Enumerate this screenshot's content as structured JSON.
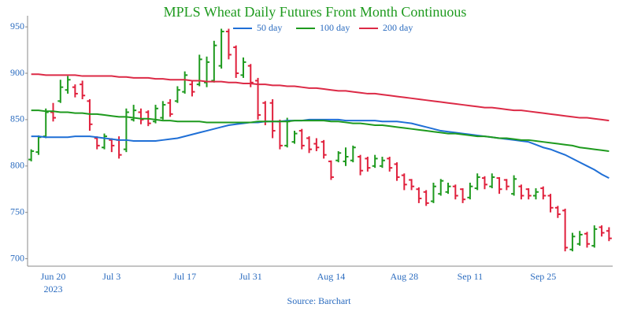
{
  "chart_data": {
    "type": "ohlc",
    "title": "MPLS Wheat Daily Futures Front Month Continuous",
    "source": "Source: Barchart",
    "year_label": "2023",
    "categories": [
      null,
      null,
      null,
      "Jun 20",
      null,
      null,
      null,
      null,
      null,
      null,
      null,
      "Jul 3",
      null,
      null,
      null,
      null,
      null,
      null,
      null,
      null,
      null,
      "Jul 17",
      null,
      null,
      null,
      null,
      null,
      null,
      null,
      null,
      "Jul 31",
      null,
      null,
      null,
      null,
      null,
      null,
      null,
      null,
      null,
      null,
      "Aug 14",
      null,
      null,
      null,
      null,
      null,
      null,
      null,
      null,
      null,
      "Aug 28",
      null,
      null,
      null,
      null,
      null,
      null,
      null,
      null,
      "Sep 11",
      null,
      null,
      null,
      null,
      null,
      null,
      null,
      null,
      null,
      "Sep 25",
      null,
      null,
      null,
      null,
      null,
      null,
      null,
      null,
      null
    ],
    "open": [
      807,
      815,
      832,
      858,
      870,
      882,
      885,
      888,
      870,
      830,
      820,
      828,
      828,
      818,
      850,
      858,
      858,
      848,
      852,
      868,
      870,
      880,
      888,
      888,
      890,
      892,
      908,
      945,
      928,
      898,
      908,
      892,
      868,
      868,
      848,
      822,
      826,
      838,
      830,
      824,
      826,
      805,
      806,
      805,
      806,
      810,
      808,
      800,
      800,
      808,
      802,
      790,
      785,
      775,
      772,
      762,
      770,
      772,
      778,
      775,
      766,
      776,
      787,
      778,
      787,
      785,
      770,
      778,
      775,
      768,
      776,
      768,
      755,
      752,
      710,
      716,
      727,
      714,
      734,
      730
    ],
    "high": [
      818,
      833,
      862,
      868,
      893,
      897,
      888,
      892,
      872,
      832,
      835,
      830,
      832,
      862,
      866,
      862,
      860,
      866,
      870,
      872,
      886,
      902,
      892,
      920,
      918,
      935,
      948,
      948,
      930,
      917,
      910,
      895,
      870,
      872,
      850,
      852,
      838,
      840,
      832,
      830,
      828,
      806,
      816,
      820,
      822,
      812,
      810,
      812,
      810,
      810,
      804,
      792,
      786,
      777,
      774,
      782,
      786,
      782,
      780,
      776,
      782,
      792,
      789,
      792,
      788,
      786,
      790,
      780,
      776,
      776,
      778,
      770,
      757,
      754,
      728,
      730,
      729,
      736,
      736,
      734
    ],
    "low": [
      805,
      812,
      830,
      848,
      868,
      878,
      874,
      872,
      838,
      818,
      818,
      815,
      808,
      815,
      848,
      845,
      843,
      846,
      850,
      853,
      868,
      878,
      875,
      886,
      885,
      890,
      905,
      915,
      895,
      895,
      885,
      850,
      844,
      830,
      818,
      820,
      824,
      818,
      814,
      816,
      808,
      785,
      804,
      800,
      804,
      790,
      794,
      798,
      798,
      794,
      784,
      774,
      774,
      760,
      757,
      760,
      768,
      770,
      764,
      760,
      764,
      774,
      775,
      776,
      770,
      774,
      768,
      764,
      764,
      764,
      764,
      750,
      744,
      708,
      708,
      714,
      712,
      712,
      724,
      719
    ],
    "close": [
      816,
      831,
      858,
      852,
      885,
      893,
      878,
      876,
      845,
      822,
      832,
      822,
      812,
      858,
      860,
      850,
      846,
      862,
      866,
      856,
      882,
      898,
      880,
      915,
      912,
      930,
      945,
      920,
      900,
      912,
      890,
      855,
      848,
      838,
      822,
      848,
      835,
      822,
      818,
      820,
      812,
      788,
      814,
      810,
      820,
      795,
      798,
      808,
      806,
      798,
      788,
      780,
      778,
      765,
      760,
      778,
      784,
      778,
      768,
      764,
      778,
      788,
      780,
      788,
      775,
      778,
      786,
      768,
      768,
      772,
      768,
      755,
      748,
      712,
      724,
      726,
      716,
      732,
      728,
      722
    ],
    "up_color": "#1e9a1e",
    "down_color": "#e0203c",
    "series": [
      {
        "name": "50 day",
        "color": "#1f6fd6",
        "values": [
          832,
          832,
          831,
          831,
          831,
          831,
          832,
          832,
          832,
          831,
          830,
          829,
          828,
          828,
          827,
          827,
          827,
          827,
          828,
          829,
          830,
          832,
          834,
          836,
          838,
          840,
          842,
          844,
          845,
          846,
          847,
          847,
          848,
          848,
          848,
          849,
          849,
          849,
          850,
          850,
          850,
          850,
          850,
          849,
          849,
          849,
          849,
          849,
          848,
          848,
          848,
          847,
          846,
          844,
          842,
          840,
          838,
          837,
          836,
          835,
          834,
          833,
          832,
          831,
          830,
          829,
          828,
          827,
          826,
          823,
          820,
          818,
          815,
          812,
          808,
          804,
          800,
          796,
          791,
          787
        ]
      },
      {
        "name": "100 day",
        "color": "#1e9a1e",
        "values": [
          860,
          860,
          859,
          859,
          858,
          858,
          857,
          857,
          856,
          856,
          855,
          854,
          853,
          853,
          852,
          851,
          851,
          850,
          849,
          849,
          848,
          848,
          848,
          848,
          847,
          847,
          847,
          847,
          847,
          847,
          847,
          848,
          848,
          848,
          848,
          848,
          849,
          849,
          849,
          849,
          849,
          848,
          848,
          847,
          846,
          846,
          845,
          844,
          844,
          843,
          842,
          841,
          840,
          839,
          838,
          837,
          836,
          835,
          835,
          834,
          833,
          832,
          832,
          831,
          830,
          830,
          829,
          828,
          828,
          827,
          826,
          825,
          824,
          823,
          822,
          820,
          819,
          818,
          817,
          816
        ]
      },
      {
        "name": "200 day",
        "color": "#dc2a46",
        "values": [
          899,
          899,
          898,
          898,
          898,
          898,
          898,
          897,
          897,
          897,
          897,
          897,
          896,
          896,
          895,
          895,
          895,
          894,
          894,
          893,
          893,
          893,
          892,
          892,
          891,
          891,
          891,
          890,
          890,
          889,
          889,
          888,
          888,
          887,
          887,
          886,
          886,
          885,
          884,
          884,
          883,
          882,
          881,
          881,
          880,
          879,
          878,
          878,
          877,
          876,
          875,
          874,
          873,
          872,
          871,
          870,
          869,
          868,
          867,
          866,
          865,
          864,
          863,
          863,
          862,
          861,
          860,
          860,
          859,
          858,
          857,
          856,
          855,
          854,
          853,
          852,
          852,
          851,
          850,
          849
        ]
      }
    ],
    "ylim": [
      692,
      962
    ],
    "yticks": [
      700,
      750,
      800,
      850,
      900,
      950
    ]
  }
}
